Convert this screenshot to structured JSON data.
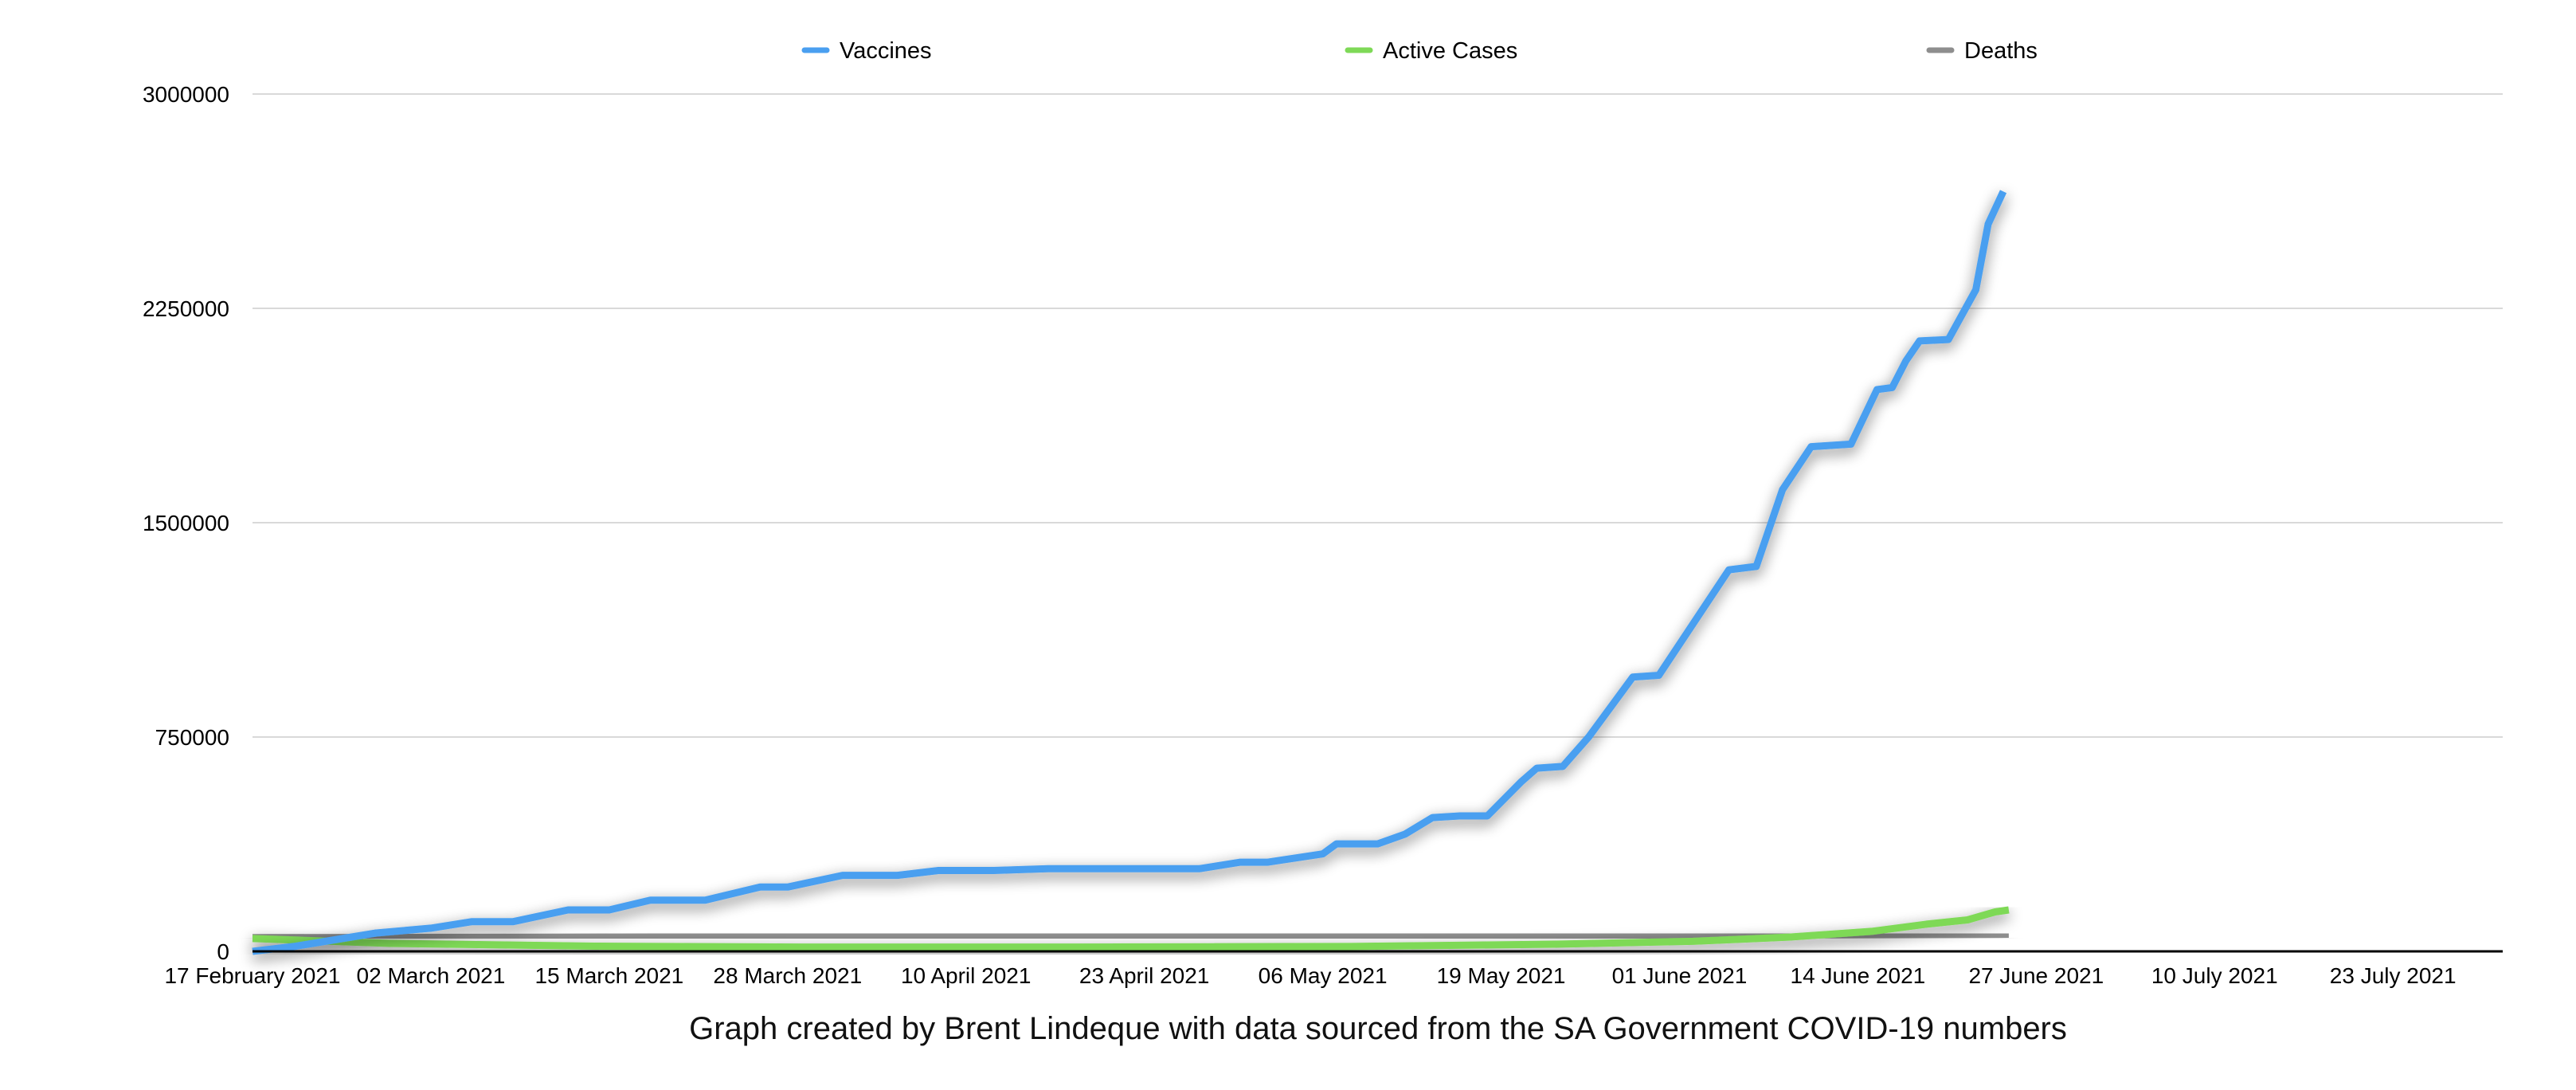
{
  "chart_data": {
    "type": "line",
    "title": "",
    "caption": "Graph created by Brent Lindeque with data sourced from the SA Government COVID-19 numbers",
    "xlabel": "",
    "ylabel": "",
    "x_unit": "days since 17 February 2021",
    "xlim": [
      0,
      164
    ],
    "ylim": [
      0,
      3000000
    ],
    "grid": true,
    "legend_position": "top",
    "y_ticks": [
      0,
      750000,
      1500000,
      2250000,
      3000000
    ],
    "y_tick_labels": [
      "0",
      "750000",
      "1500000",
      "2250000",
      "3000000"
    ],
    "x_ticks": [
      0,
      13,
      26,
      39,
      52,
      65,
      78,
      91,
      104,
      117,
      130,
      143,
      156
    ],
    "x_tick_labels": [
      "17 February 2021",
      "02 March 2021",
      "15 March 2021",
      "28 March 2021",
      "10 April 2021",
      "23 April 2021",
      "06 May 2021",
      "19 May 2021",
      "01 June 2021",
      "14 June 2021",
      "27 June 2021",
      "10 July 2021",
      "23 July 2021"
    ],
    "series": [
      {
        "name": "Vaccines",
        "color": "#4a9ff0",
        "x": [
          0,
          3,
          9,
          13,
          16,
          19,
          23,
          26,
          29,
          33,
          37,
          39,
          43,
          47,
          50,
          54,
          58,
          69,
          72,
          74,
          78,
          79,
          82,
          84,
          86,
          88,
          90,
          92.5,
          93.6,
          95.5,
          97.4,
          100.6,
          102.5,
          107.6,
          109.6,
          111.5,
          113.6,
          116.5,
          118.4,
          119.5,
          120.5,
          121.5,
          123.6,
          125.6,
          126.5,
          127.6
        ],
        "values": [
          0,
          17000,
          64000,
          81000,
          104000,
          104000,
          145000,
          145000,
          179000,
          179000,
          225000,
          225000,
          266000,
          266000,
          283000,
          283000,
          289000,
          289000,
          312000,
          312000,
          341000,
          376000,
          376000,
          410000,
          468000,
          474000,
          474000,
          595000,
          641000,
          647000,
          751000,
          960000,
          966000,
          1335000,
          1347000,
          1615000,
          1766000,
          1775000,
          1966000,
          1973000,
          2066000,
          2136000,
          2141000,
          2315000,
          2545000,
          2659000
        ]
      },
      {
        "name": "Active Cases",
        "color": "#7ed957",
        "x": [
          0,
          10,
          25,
          40,
          60,
          80,
          95,
          105,
          112,
          118,
          122,
          125,
          127,
          128
        ],
        "values": [
          45000,
          28000,
          18000,
          15000,
          15000,
          17000,
          25000,
          35000,
          50000,
          70000,
          95000,
          110000,
          138000,
          145000
        ]
      },
      {
        "name": "Deaths",
        "color": "#8e8e8e",
        "x": [
          0,
          40,
          80,
          110,
          128
        ],
        "values": [
          48000,
          51000,
          54500,
          58000,
          60000
        ]
      }
    ]
  }
}
